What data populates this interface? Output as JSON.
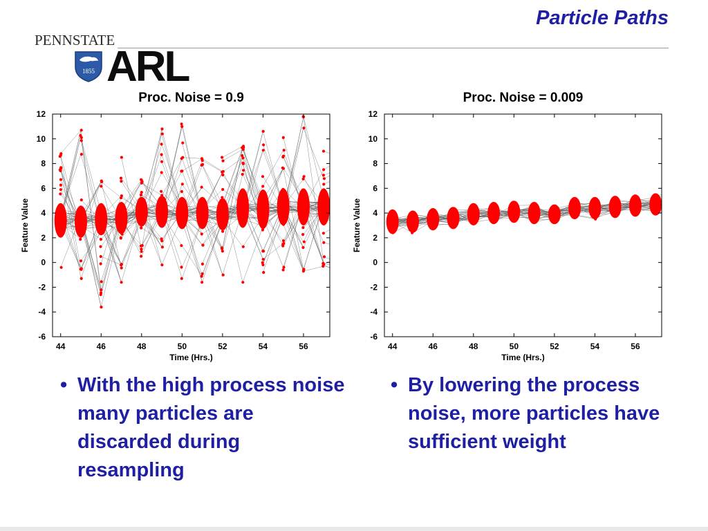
{
  "slide": {
    "title": "Particle Paths",
    "logo_text": "PENNSTATE",
    "shield_year": "1855",
    "lab_logo": "ARL"
  },
  "colors": {
    "title_blue": "#1f1fa3",
    "particle_red": "#ff0000",
    "path_gray": "#555555"
  },
  "bullets": {
    "left": "With the high process noise many particles are discarded during resampling",
    "right": "By lowering the process noise, more particles have sufficient weight"
  },
  "chart_data": [
    {
      "type": "scatter",
      "title": "Proc. Noise = 0.9",
      "xlabel": "Time (Hrs.)",
      "ylabel": "Feature Value",
      "xlim": [
        43.6,
        57.3
      ],
      "ylim": [
        -6,
        12
      ],
      "xticks": [
        44,
        46,
        48,
        50,
        52,
        54,
        56
      ],
      "yticks": [
        12,
        10,
        8,
        6,
        4,
        2,
        0,
        -2,
        -4,
        -6
      ],
      "grid": false,
      "time_points": [
        44,
        45,
        46,
        47,
        48,
        49,
        50,
        51,
        52,
        53,
        54,
        55,
        56,
        57
      ],
      "cluster_center": [
        3.4,
        3.3,
        3.5,
        3.6,
        4.1,
        4.1,
        4.0,
        4.0,
        3.9,
        4.4,
        4.3,
        4.5,
        4.5,
        4.5
      ],
      "cluster_half_height": [
        1.4,
        1.3,
        1.3,
        1.3,
        1.2,
        1.3,
        1.3,
        1.3,
        1.3,
        1.6,
        1.6,
        1.5,
        1.5,
        1.5
      ],
      "particle_min": [
        -0.4,
        -1.3,
        -3.6,
        -1.6,
        0.5,
        -0.2,
        -1.3,
        -1.6,
        -1.0,
        -1.6,
        -0.8,
        -0.6,
        -0.7,
        -0.3
      ],
      "particle_max": [
        8.8,
        10.7,
        6.6,
        8.5,
        6.7,
        10.8,
        11.2,
        8.4,
        8.5,
        9.4,
        10.6,
        10.1,
        11.8,
        9.0
      ],
      "particle_spread": "wide"
    },
    {
      "type": "scatter",
      "title": "Proc. Noise = 0.009",
      "xlabel": "Time (Hrs.)",
      "ylabel": "Feature Value",
      "xlim": [
        43.6,
        57.3
      ],
      "ylim": [
        -6,
        12
      ],
      "xticks": [
        44,
        46,
        48,
        50,
        52,
        54,
        56
      ],
      "yticks": [
        12,
        10,
        8,
        6,
        4,
        2,
        0,
        -2,
        -4,
        -6
      ],
      "grid": false,
      "time_points": [
        44,
        45,
        46,
        47,
        48,
        49,
        50,
        51,
        52,
        53,
        54,
        55,
        56,
        57
      ],
      "cluster_center": [
        3.3,
        3.3,
        3.5,
        3.6,
        3.9,
        4.0,
        4.1,
        4.0,
        3.9,
        4.4,
        4.4,
        4.5,
        4.6,
        4.7
      ],
      "cluster_half_height": [
        1.0,
        0.9,
        0.9,
        0.9,
        0.9,
        0.9,
        0.9,
        0.9,
        0.8,
        0.9,
        0.9,
        0.9,
        0.9,
        0.9
      ],
      "particle_min": [
        2.4,
        2.4,
        2.6,
        2.7,
        3.0,
        3.1,
        3.2,
        3.1,
        3.1,
        3.5,
        3.5,
        3.6,
        3.7,
        3.8
      ],
      "particle_max": [
        4.3,
        4.2,
        4.4,
        4.5,
        4.8,
        4.9,
        5.0,
        4.9,
        4.7,
        5.3,
        5.3,
        5.4,
        5.5,
        5.6
      ],
      "particle_spread": "narrow"
    }
  ]
}
